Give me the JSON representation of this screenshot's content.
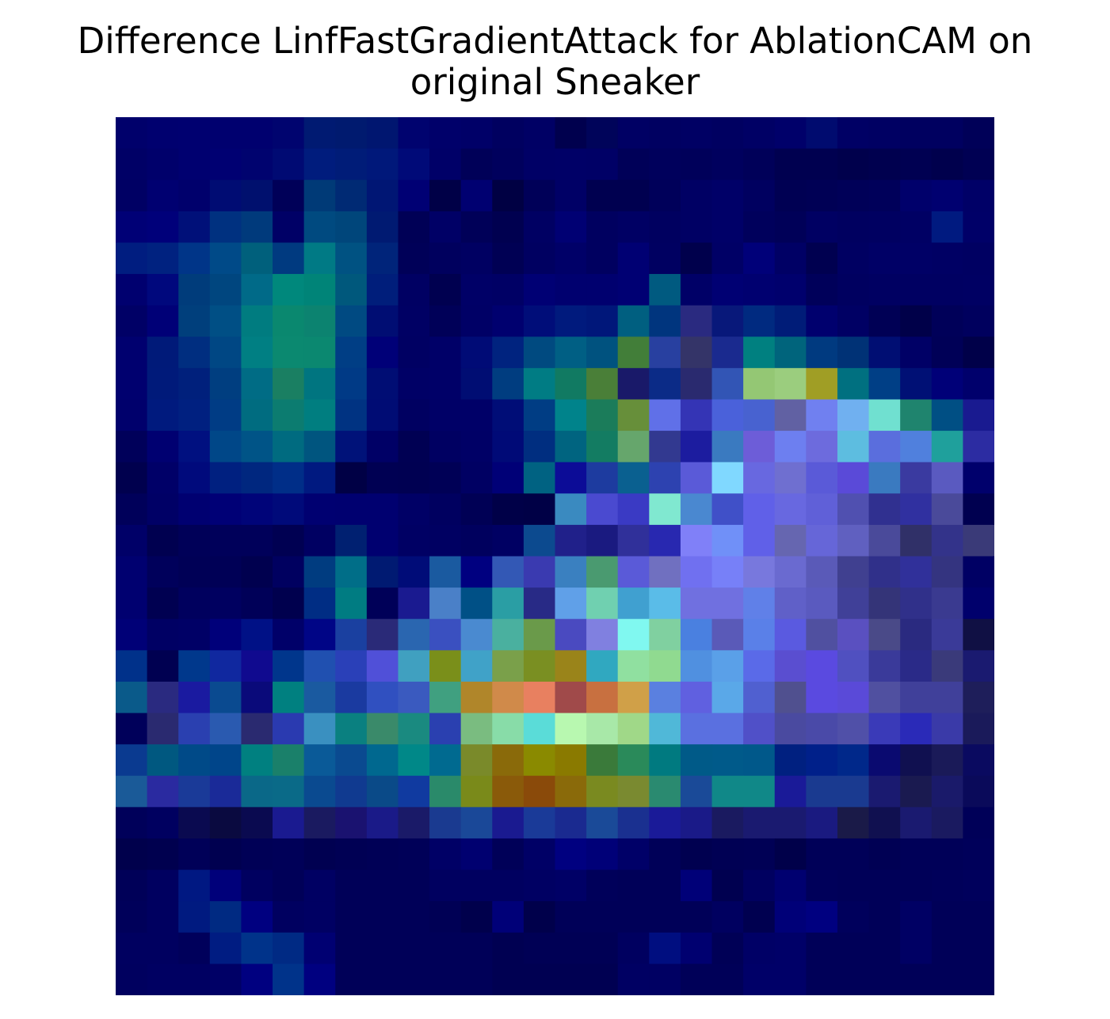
{
  "chart_data": {
    "type": "heatmap",
    "title_lines": [
      "Difference LinfFastGradientAttack for AblationCAM on",
      "original Sneaker"
    ],
    "rows": 28,
    "cols": 28,
    "axes_visible": false,
    "grid": false,
    "colorbar": false,
    "colormap_approx": "jet (blue-dominant) blended over dark navy",
    "cell_colors": [
      [
        "#00006b",
        "#00006f",
        "#000070",
        "#00006f",
        "#00006f",
        "#00046f",
        "#001a72",
        "#001a6f",
        "#001670",
        "#00036f",
        "#00006a",
        "#000068",
        "#000060",
        "#000065",
        "#00004e",
        "#00045a",
        "#000064",
        "#000061",
        "#000064",
        "#000061",
        "#000065",
        "#00006a",
        "#000b6f",
        "#000065",
        "#000063",
        "#000060",
        "#000060",
        "#000058"
      ],
      [
        "#000066",
        "#00006b",
        "#000070",
        "#000072",
        "#00036f",
        "#000a73",
        "#001c7d",
        "#001c78",
        "#00187a",
        "#000a78",
        "#000068",
        "#000058",
        "#00005d",
        "#000066",
        "#000067",
        "#000066",
        "#000058",
        "#00005c",
        "#00005a",
        "#00005e",
        "#000059",
        "#000050",
        "#000050",
        "#00004c",
        "#00004f",
        "#000052",
        "#00004d",
        "#000053"
      ],
      [
        "#000064",
        "#000071",
        "#00006c",
        "#000c73",
        "#00106e",
        "#000058",
        "#003a77",
        "#002a74",
        "#001674",
        "#000074",
        "#000047",
        "#000071",
        "#000043",
        "#000058",
        "#000066",
        "#000050",
        "#000050",
        "#00005a",
        "#000064",
        "#000068",
        "#000060",
        "#000053",
        "#000055",
        "#000058",
        "#00005a",
        "#00006b",
        "#000070",
        "#000067"
      ],
      [
        "#000076",
        "#00007a",
        "#001079",
        "#003180",
        "#003a7c",
        "#000066",
        "#004a80",
        "#00467b",
        "#001a72",
        "#000056",
        "#000066",
        "#000058",
        "#000050",
        "#000063",
        "#000073",
        "#000060",
        "#000064",
        "#000060",
        "#000064",
        "#000068",
        "#00005c",
        "#000058",
        "#000063",
        "#000060",
        "#000061",
        "#000064",
        "#001a80",
        "#000068"
      ],
      [
        "#001d80",
        "#002280",
        "#003588",
        "#004a88",
        "#00607c",
        "#003a80",
        "#007a85",
        "#005282",
        "#00247a",
        "#000058",
        "#00005e",
        "#000062",
        "#000054",
        "#000061",
        "#000068",
        "#000060",
        "#000073",
        "#000061",
        "#00004c",
        "#000066",
        "#000079",
        "#000065",
        "#000050",
        "#000062",
        "#000066",
        "#000066",
        "#000064",
        "#000062"
      ],
      [
        "#00006f",
        "#00087d",
        "#003c7b",
        "#00467f",
        "#006a88",
        "#00887c",
        "#008478",
        "#00587c",
        "#001e7b",
        "#000063",
        "#000050",
        "#000067",
        "#000065",
        "#000074",
        "#00006f",
        "#00006f",
        "#000073",
        "#005a80",
        "#000067",
        "#000073",
        "#000070",
        "#00006d",
        "#00005a",
        "#000060",
        "#000062",
        "#000062",
        "#000062",
        "#000063"
      ],
      [
        "#000066",
        "#000077",
        "#003f7c",
        "#004f85",
        "#007c80",
        "#0a886f",
        "#0c8370",
        "#004a82",
        "#000d73",
        "#000064",
        "#000058",
        "#000066",
        "#00006f",
        "#000d79",
        "#001a7d",
        "#00177a",
        "#005f80",
        "#00357e",
        "#2a2a80",
        "#08187a",
        "#002a80",
        "#001c78",
        "#00006e",
        "#000064",
        "#000055",
        "#000049",
        "#000059",
        "#00005e"
      ],
      [
        "#00006f",
        "#001a79",
        "#002e80",
        "#004784",
        "#007f83",
        "#0b8970",
        "#0b8870",
        "#003e85",
        "#000078",
        "#000063",
        "#000068",
        "#000b76",
        "#00237f",
        "#004a80",
        "#005f84",
        "#00527f",
        "#427e39",
        "#2840a0",
        "#343468",
        "#1a2a8f",
        "#008080",
        "#00647c",
        "#003a80",
        "#003276",
        "#000e73",
        "#000066",
        "#000057",
        "#000049"
      ],
      [
        "#00006f",
        "#001a7a",
        "#00207c",
        "#003e80",
        "#006c85",
        "#1a7f62",
        "#007580",
        "#003a86",
        "#000d74",
        "#000066",
        "#000068",
        "#000d73",
        "#003d80",
        "#007c84",
        "#117a62",
        "#4a7f38",
        "#191969",
        "#0b2b87",
        "#2a2a6f",
        "#3255b5",
        "#94c774",
        "#9bcd7e",
        "#a09e25",
        "#007080",
        "#003f86",
        "#001075",
        "#000078",
        "#00006c"
      ],
      [
        "#00006c",
        "#001a7e",
        "#002080",
        "#003c85",
        "#006c80",
        "#0c7c70",
        "#007e80",
        "#003382",
        "#000c74",
        "#000061",
        "#000067",
        "#000068",
        "#000d77",
        "#003d84",
        "#00838b",
        "#1b7c5a",
        "#678f3a",
        "#6070e8",
        "#3434b5",
        "#4a61da",
        "#4862d0",
        "#6161a3",
        "#7080f0",
        "#70b0f0",
        "#70e0d0",
        "#1f846e",
        "#004f84",
        "#191a90",
        "#000b75"
      ],
      [
        "#00005a",
        "#000071",
        "#001080",
        "#004788",
        "#005487",
        "#006b80",
        "#00557f",
        "#001279",
        "#000066",
        "#000053",
        "#000062",
        "#000066",
        "#000a77",
        "#002e80",
        "#006480",
        "#137c62",
        "#66a66c",
        "#323990",
        "#1c1c9f",
        "#3a7ac0",
        "#6d5dd8",
        "#6d7ff0",
        "#6d6bdd",
        "#5dbde0",
        "#5a6edd",
        "#5080dd",
        "#1fa09c",
        "#2c2ca2",
        "#1a1a8f"
      ],
      [
        "#00004e",
        "#000068",
        "#000a7c",
        "#002080",
        "#00277f",
        "#002e88",
        "#001980",
        "#000045",
        "#000053",
        "#000052",
        "#000056",
        "#000063",
        "#000077",
        "#006282",
        "#0c0c97",
        "#1d3b9f",
        "#0a6090",
        "#2d42b0",
        "#5a5ad8",
        "#80d8ff",
        "#6868e0",
        "#6f6fd0",
        "#5a5ad8",
        "#5a4ad8",
        "#3a7ac0",
        "#3a3aa0",
        "#5a5ac0",
        "#00006c"
      ],
      [
        "#00005a",
        "#000066",
        "#000071",
        "#000076",
        "#000479",
        "#000a7a",
        "#000071",
        "#000070",
        "#000070",
        "#000066",
        "#000060",
        "#000055",
        "#000048",
        "#000046",
        "#3a8ac0",
        "#4a4ad0",
        "#3a3ac4",
        "#80e8d0",
        "#4a88d0",
        "#4050c8",
        "#6060e8",
        "#6868e0",
        "#6060d8",
        "#5050b0",
        "#303090",
        "#3030a0",
        "#4a4a9a",
        "#000050"
      ],
      [
        "#000068",
        "#000050",
        "#000058",
        "#00005a",
        "#00005a",
        "#000052",
        "#000062",
        "#002071",
        "#000070",
        "#000064",
        "#000062",
        "#00005e",
        "#000063",
        "#0c4a8f",
        "#20208a",
        "#1a1a80",
        "#30309a",
        "#2828b0",
        "#8080f8",
        "#7090f8",
        "#6060e8",
        "#6666b0",
        "#6666d8",
        "#6060c0",
        "#4a4a9a",
        "#303068",
        "#33338a",
        "#3a3a78",
        "#000058"
      ],
      [
        "#000070",
        "#00005b",
        "#000056",
        "#000056",
        "#00004f",
        "#000060",
        "#003c80",
        "#006e88",
        "#001a72",
        "#000c78",
        "#1a5aa0",
        "#000080",
        "#3358b5",
        "#3a3ab0",
        "#3a80c0",
        "#4a9a70",
        "#5a5ad8",
        "#7070c0",
        "#7070f0",
        "#7780f8",
        "#7878dd",
        "#6a6ad0",
        "#5a5ab8",
        "#404090",
        "#30308a",
        "#30309a",
        "#343480",
        "#000064"
      ],
      [
        "#000070",
        "#000051",
        "#00005e",
        "#000060",
        "#000058",
        "#00004e",
        "#002d84",
        "#007c82",
        "#000058",
        "#1a1a90",
        "#4a80c8",
        "#005086",
        "#2a9ea4",
        "#282a86",
        "#60a0e8",
        "#70d0b0",
        "#40a0d0",
        "#5abce8",
        "#7070e0",
        "#7070e0",
        "#6080e8",
        "#6060c8",
        "#5a5abf",
        "#404098",
        "#343478",
        "#30308a",
        "#3a3a90",
        "#00006c"
      ],
      [
        "#000077",
        "#000064",
        "#000066",
        "#00007a",
        "#001186",
        "#000069",
        "#000586",
        "#1a40a0",
        "#2a2a78",
        "#2a66b0",
        "#3a50c0",
        "#4a8ad0",
        "#4ab09f",
        "#6a9a4a",
        "#4a4ac0",
        "#8080e0",
        "#80f8f0",
        "#80d0a0",
        "#4a80e0",
        "#5a5ab8",
        "#5a80e8",
        "#5a5ae0",
        "#5050a0",
        "#5a50c0",
        "#4a4a88",
        "#2a2a80",
        "#3a3a98",
        "#101044"
      ],
      [
        "#00318a",
        "#000051",
        "#00388c",
        "#10289f",
        "#100a8f",
        "#00368c",
        "#2050b0",
        "#2a40b8",
        "#5050d8",
        "#40a0c0",
        "#7a8f1a",
        "#40a2c8",
        "#7aa04a",
        "#7a8f22",
        "#9a841a",
        "#30a8c0",
        "#90e0a0",
        "#90da90",
        "#5090e0",
        "#5aa0e8",
        "#5a6ae8",
        "#5a4ed0",
        "#5a4ae0",
        "#5050c0",
        "#3a3a9a",
        "#2a2a88",
        "#3a3a7a",
        "#1a1a70"
      ],
      [
        "#0a5a8a",
        "#2a2a80",
        "#1a1aa0",
        "#0a4a90",
        "#0a0a7a",
        "#008080",
        "#1a5aa0",
        "#1a3aa0",
        "#3050c0",
        "#3a5abf",
        "#40a080",
        "#b0862a",
        "#d08a4a",
        "#e88060",
        "#a04a4a",
        "#c87040",
        "#d0a048",
        "#5a80e0",
        "#6060e0",
        "#5aa8e8",
        "#5060d0",
        "#50508f",
        "#5a4ae0",
        "#5a4ad8",
        "#5050a0",
        "#40409a",
        "#40409a",
        "#1e1e5a"
      ],
      [
        "#00005a",
        "#2a2a70",
        "#2a40b0",
        "#2a5ab0",
        "#2a2a70",
        "#2a3ab0",
        "#3a90c0",
        "#0a8080",
        "#3a8a6a",
        "#1a8a80",
        "#2a40b0",
        "#7abc80",
        "#88dca8",
        "#5adcd8",
        "#b8f8b0",
        "#a8e8a8",
        "#a0d888",
        "#50b8d8",
        "#5a70e0",
        "#5a70e0",
        "#5050c8",
        "#4a4aa0",
        "#4a4aa8",
        "#5050a8",
        "#3a3ab8",
        "#2a2ab8",
        "#3a3aa8",
        "#1a1a5a"
      ],
      [
        "#0a3a90",
        "#005880",
        "#004a88",
        "#00458a",
        "#008080",
        "#1a806a",
        "#0a5a98",
        "#0a4a90",
        "#00688f",
        "#008888",
        "#006a90",
        "#7a8a2a",
        "#8a6a0a",
        "#8a8a00",
        "#8a7a00",
        "#3a7a3a",
        "#2a8a5a",
        "#007a80",
        "#005a88",
        "#005a8a",
        "#00588a",
        "#002080",
        "#00208a",
        "#00288a",
        "#0a0a70",
        "#101050",
        "#1a1a58",
        "#0a0a60"
      ],
      [
        "#1a5a98",
        "#2a2aa0",
        "#1a3a98",
        "#1a2a98",
        "#0a6888",
        "#0a6a88",
        "#0a4a90",
        "#103a90",
        "#0a4a88",
        "#103aa0",
        "#2a8a6a",
        "#7a8a1a",
        "#8a5a0a",
        "#8a4a0a",
        "#8a6a0a",
        "#7a8a20",
        "#7a8a30",
        "#2a8a70",
        "#1a4a98",
        "#108888",
        "#108888",
        "#1a1a98",
        "#1a3a90",
        "#1a3a90",
        "#1a1a70",
        "#1a1a50",
        "#1a1a6a",
        "#0a0a5a"
      ],
      [
        "#00005a",
        "#000060",
        "#0a0a50",
        "#0a0a40",
        "#0a0a50",
        "#1a1a90",
        "#1a1a60",
        "#1a1270",
        "#1a1a88",
        "#1a1a68",
        "#1a3a90",
        "#1a4898",
        "#1a1a90",
        "#1a3a98",
        "#1a2a90",
        "#1a4a98",
        "#1a3090",
        "#1a1a98",
        "#1a1a88",
        "#1a1a60",
        "#1a1a70",
        "#1a1a70",
        "#1a1a80",
        "#1a1a48",
        "#101050",
        "#1a1a70",
        "#1a1a60",
        "#000058"
      ],
      [
        "#00004c",
        "#00004f",
        "#000058",
        "#000050",
        "#000056",
        "#000058",
        "#000051",
        "#000054",
        "#000056",
        "#000058",
        "#000066",
        "#000070",
        "#000058",
        "#000066",
        "#000080",
        "#000078",
        "#000068",
        "#000058",
        "#000050",
        "#000054",
        "#000055",
        "#00004a",
        "#000058",
        "#000058",
        "#000054",
        "#000058",
        "#000058",
        "#00005a"
      ],
      [
        "#000058",
        "#000060",
        "#001882",
        "#00007a",
        "#000060",
        "#000058",
        "#000063",
        "#000058",
        "#000058",
        "#000058",
        "#000060",
        "#000060",
        "#000060",
        "#000063",
        "#000066",
        "#00005a",
        "#000058",
        "#000058",
        "#000078",
        "#000050",
        "#000060",
        "#000070",
        "#00005a",
        "#000058",
        "#000058",
        "#000058",
        "#00005a",
        "#00005c"
      ],
      [
        "#00005a",
        "#000060",
        "#001a80",
        "#002a82",
        "#000080",
        "#000060",
        "#000063",
        "#000058",
        "#000058",
        "#000058",
        "#000055",
        "#00004c",
        "#000078",
        "#00004b",
        "#000058",
        "#000058",
        "#000058",
        "#000058",
        "#000058",
        "#000060",
        "#000050",
        "#000078",
        "#000080",
        "#00005c",
        "#000058",
        "#000064",
        "#000058",
        "#000058"
      ],
      [
        "#000060",
        "#000060",
        "#00005b",
        "#001c82",
        "#00338a",
        "#002a84",
        "#000072",
        "#000058",
        "#000058",
        "#000058",
        "#000058",
        "#000058",
        "#000052",
        "#000055",
        "#000055",
        "#000055",
        "#000060",
        "#000e80",
        "#000070",
        "#000056",
        "#000066",
        "#000068",
        "#000058",
        "#000058",
        "#000058",
        "#000064",
        "#000058",
        "#000058"
      ],
      [
        "#00005f",
        "#000062",
        "#000062",
        "#000066",
        "#000080",
        "#00338a",
        "#000080",
        "#000058",
        "#000058",
        "#000058",
        "#000058",
        "#000058",
        "#000052",
        "#000052",
        "#000052",
        "#000052",
        "#000063",
        "#000063",
        "#000058",
        "#000058",
        "#000068",
        "#000068",
        "#000058",
        "#000058",
        "#000058",
        "#000058",
        "#000058",
        "#000058"
      ]
    ]
  }
}
